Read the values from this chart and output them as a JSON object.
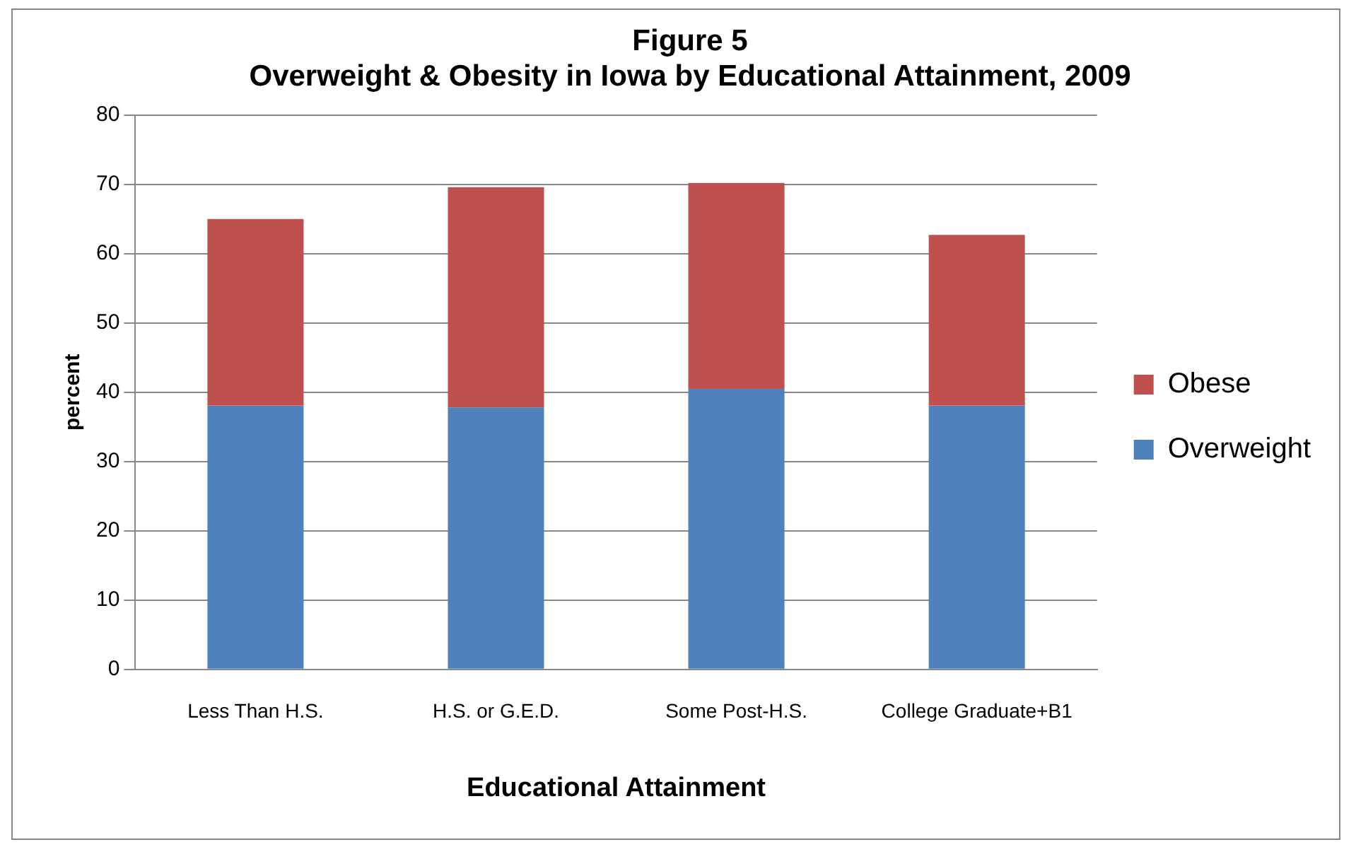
{
  "chart_data": {
    "type": "bar",
    "title": "Figure 5",
    "subtitle": "Overweight & Obesity in Iowa by Educational Attainment, 2009",
    "xlabel": "Educational Attainment",
    "ylabel": "percent",
    "categories": [
      "Less Than H.S.",
      "H.S. or G.E.D.",
      "Some Post-H.S.",
      "College Graduate+B1"
    ],
    "series": [
      {
        "name": "Overweight",
        "color": "#4f81bd",
        "values": [
          38.1,
          37.8,
          40.6,
          38.1
        ]
      },
      {
        "name": "Obese",
        "color": "#c0504d",
        "values": [
          26.9,
          31.8,
          29.6,
          24.6
        ]
      }
    ],
    "stacked": true,
    "ylim": [
      0,
      80
    ],
    "yticks": [
      0,
      10,
      20,
      30,
      40,
      50,
      60,
      70,
      80
    ],
    "grid": "y",
    "legend": "right"
  }
}
